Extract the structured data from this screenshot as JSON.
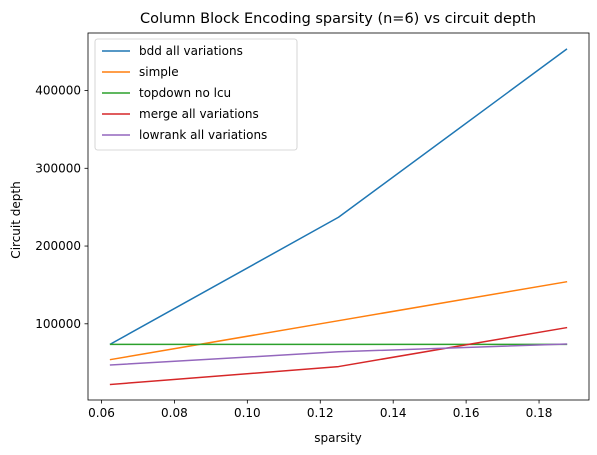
{
  "chart_data": {
    "type": "line",
    "title": "Column Block Encoding sparsity (n=6) vs circuit depth",
    "xlabel": "sparsity",
    "ylabel": "Circuit depth",
    "x": [
      0.0625,
      0.125,
      0.1875
    ],
    "xlim": [
      0.0563,
      0.1937
    ],
    "ylim": [
      2000,
      474000
    ],
    "xticks": [
      0.06,
      0.08,
      0.1,
      0.12,
      0.14,
      0.16,
      0.18
    ],
    "xtick_labels": [
      "0.06",
      "0.08",
      "0.10",
      "0.12",
      "0.14",
      "0.16",
      "0.18"
    ],
    "yticks": [
      100000,
      200000,
      300000,
      400000
    ],
    "ytick_labels": [
      "100000",
      "200000",
      "300000",
      "400000"
    ],
    "grid": false,
    "legend_position": "top-left",
    "series": [
      {
        "name": "bdd all variations",
        "color": "#1f77b4",
        "values": [
          74000,
          237000,
          453000
        ]
      },
      {
        "name": "simple",
        "color": "#ff7f0e",
        "values": [
          54000,
          104000,
          154000
        ]
      },
      {
        "name": "topdown no lcu",
        "color": "#2ca02c",
        "values": [
          73500,
          73500,
          73500
        ]
      },
      {
        "name": "merge all variations",
        "color": "#d62728",
        "values": [
          22000,
          45000,
          95000
        ]
      },
      {
        "name": "lowrank all variations",
        "color": "#9467bd",
        "values": [
          47000,
          64000,
          74000
        ]
      }
    ]
  }
}
